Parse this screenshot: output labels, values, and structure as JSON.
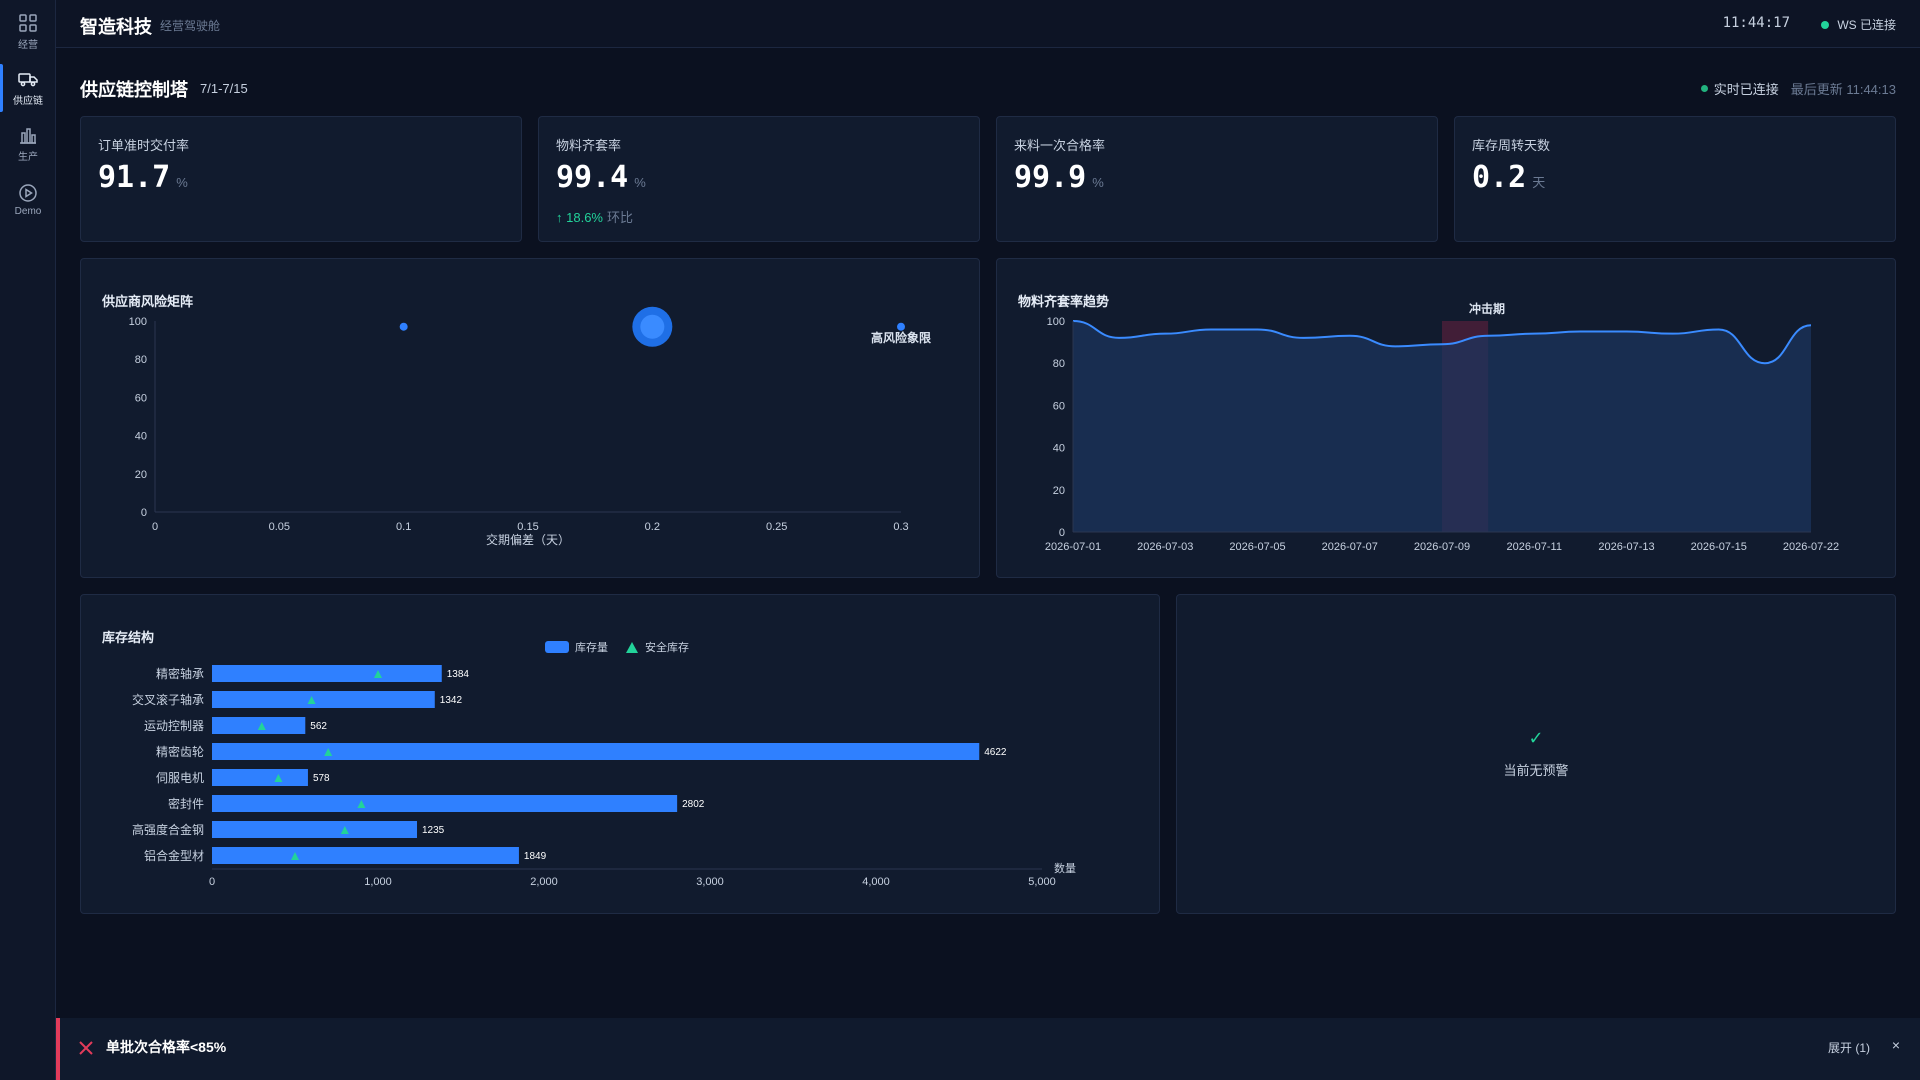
{
  "sidebar": {
    "items": [
      {
        "label": "经营",
        "icon": "grid-icon"
      },
      {
        "label": "供应链",
        "icon": "truck-icon",
        "active": true
      },
      {
        "label": "生产",
        "icon": "factory-icon"
      },
      {
        "label": "Demo",
        "icon": "play-circle-icon"
      }
    ]
  },
  "header": {
    "brand": "智造科技",
    "subtitle": "经营驾驶舱",
    "clock": "11:44:17",
    "ws_status": "WS 已连接"
  },
  "page": {
    "title": "供应链控制塔",
    "range": "7/1-7/15",
    "live_status": "实时已连接",
    "last_update": "最后更新 11:44:13"
  },
  "kpis": [
    {
      "label": "订单准时交付率",
      "value": "91.7",
      "unit": "%"
    },
    {
      "label": "物料齐套率",
      "value": "99.4",
      "unit": "%",
      "delta": "18.6%",
      "delta_label": "环比"
    },
    {
      "label": "来料一次合格率",
      "value": "99.9",
      "unit": "%"
    },
    {
      "label": "库存周转天数",
      "value": "0.2",
      "unit": "天"
    }
  ],
  "colors": {
    "accent": "#2f80ff",
    "good": "#22d39a",
    "alert": "#e23b5a"
  },
  "chart_data": [
    {
      "type": "scatter",
      "title": "供应商风险矩阵",
      "xlabel": "交期偏差（天）",
      "ylabel": "",
      "xlim": [
        0,
        0.3
      ],
      "ylim": [
        0,
        100
      ],
      "xticks": [
        "0",
        "0.05",
        "0.1",
        "0.15",
        "0.2",
        "0.25",
        "0.3"
      ],
      "yticks": [
        "0",
        "20",
        "40",
        "60",
        "80",
        "100"
      ],
      "points": [
        {
          "x": 0.1,
          "y": 97,
          "size": 1
        },
        {
          "x": 0.2,
          "y": 97,
          "size": 6
        },
        {
          "x": 0.3,
          "y": 97,
          "size": 1
        }
      ],
      "annotations": [
        {
          "text": "高风险象限",
          "x": 0.3,
          "y": 91
        }
      ],
      "grid": false
    },
    {
      "type": "area",
      "title": "物料齐套率趋势",
      "x": [
        "2026-07-01",
        "2026-07-02",
        "2026-07-03",
        "2026-07-04",
        "2026-07-05",
        "2026-07-06",
        "2026-07-07",
        "2026-07-08",
        "2026-07-09",
        "2026-07-10",
        "2026-07-11",
        "2026-07-12",
        "2026-07-13",
        "2026-07-14",
        "2026-07-15",
        "2026-07-16",
        "2026-07-22"
      ],
      "xticks": [
        "2026-07-01",
        "2026-07-03",
        "2026-07-05",
        "2026-07-07",
        "2026-07-09",
        "2026-07-11",
        "2026-07-13",
        "2026-07-15",
        "2026-07-22"
      ],
      "values": [
        100,
        92,
        94,
        96,
        96,
        92,
        93,
        88,
        89,
        93,
        94,
        95,
        95,
        94,
        96,
        80,
        98
      ],
      "ylim": [
        0,
        100
      ],
      "yticks": [
        "0",
        "20",
        "40",
        "60",
        "80",
        "100"
      ],
      "highlight": {
        "label": "冲击期",
        "from": "2026-07-09",
        "to": "2026-07-10"
      },
      "grid": false
    },
    {
      "type": "bar",
      "orientation": "horizontal",
      "title": "库存结构",
      "categories": [
        "精密轴承",
        "交叉滚子轴承",
        "运动控制器",
        "精密齿轮",
        "伺服电机",
        "密封件",
        "高强度合金钢",
        "铝合金型材"
      ],
      "series": [
        {
          "name": "库存量",
          "values": [
            1384,
            1342,
            562,
            4622,
            578,
            2802,
            1235,
            1849
          ]
        },
        {
          "name": "安全库存",
          "values": [
            1000,
            600,
            300,
            700,
            400,
            900,
            800,
            500
          ]
        }
      ],
      "value_labels": [
        "1384",
        "1342",
        "562",
        "4622",
        "578",
        "2802",
        "1235",
        "1849"
      ],
      "xlim": [
        0,
        5000
      ],
      "xticks": [
        "0",
        "1,000",
        "2,000",
        "3,000",
        "4,000",
        "5,000"
      ],
      "xlabel": "数量",
      "legend": "top-center"
    }
  ],
  "alerts_panel": {
    "empty_check": "✓",
    "empty_text": "当前无预警"
  },
  "alert_bar": {
    "message": "单批次合格率<85%",
    "expand": "展开 (1)",
    "close": "×"
  }
}
